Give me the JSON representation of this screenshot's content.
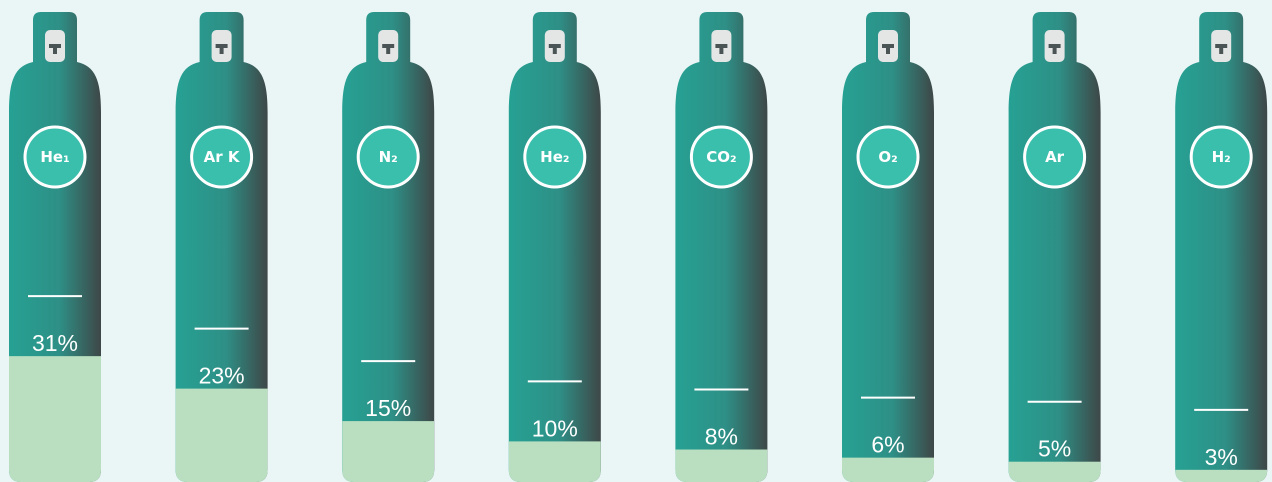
{
  "chart_data": {
    "type": "cylinder",
    "categories": [
      "He₁",
      "Ar K",
      "N₂",
      "He₂",
      "CO₂",
      "O₂",
      "Ar",
      "H₂"
    ],
    "values": [
      31,
      23,
      15,
      10,
      8,
      6,
      5,
      3
    ],
    "value_labels": [
      "31%",
      "23%",
      "15%",
      "10%",
      "8%",
      "6%",
      "5%",
      "3%"
    ],
    "color": "#b9dfc0",
    "ylim": [
      0,
      100
    ]
  }
}
